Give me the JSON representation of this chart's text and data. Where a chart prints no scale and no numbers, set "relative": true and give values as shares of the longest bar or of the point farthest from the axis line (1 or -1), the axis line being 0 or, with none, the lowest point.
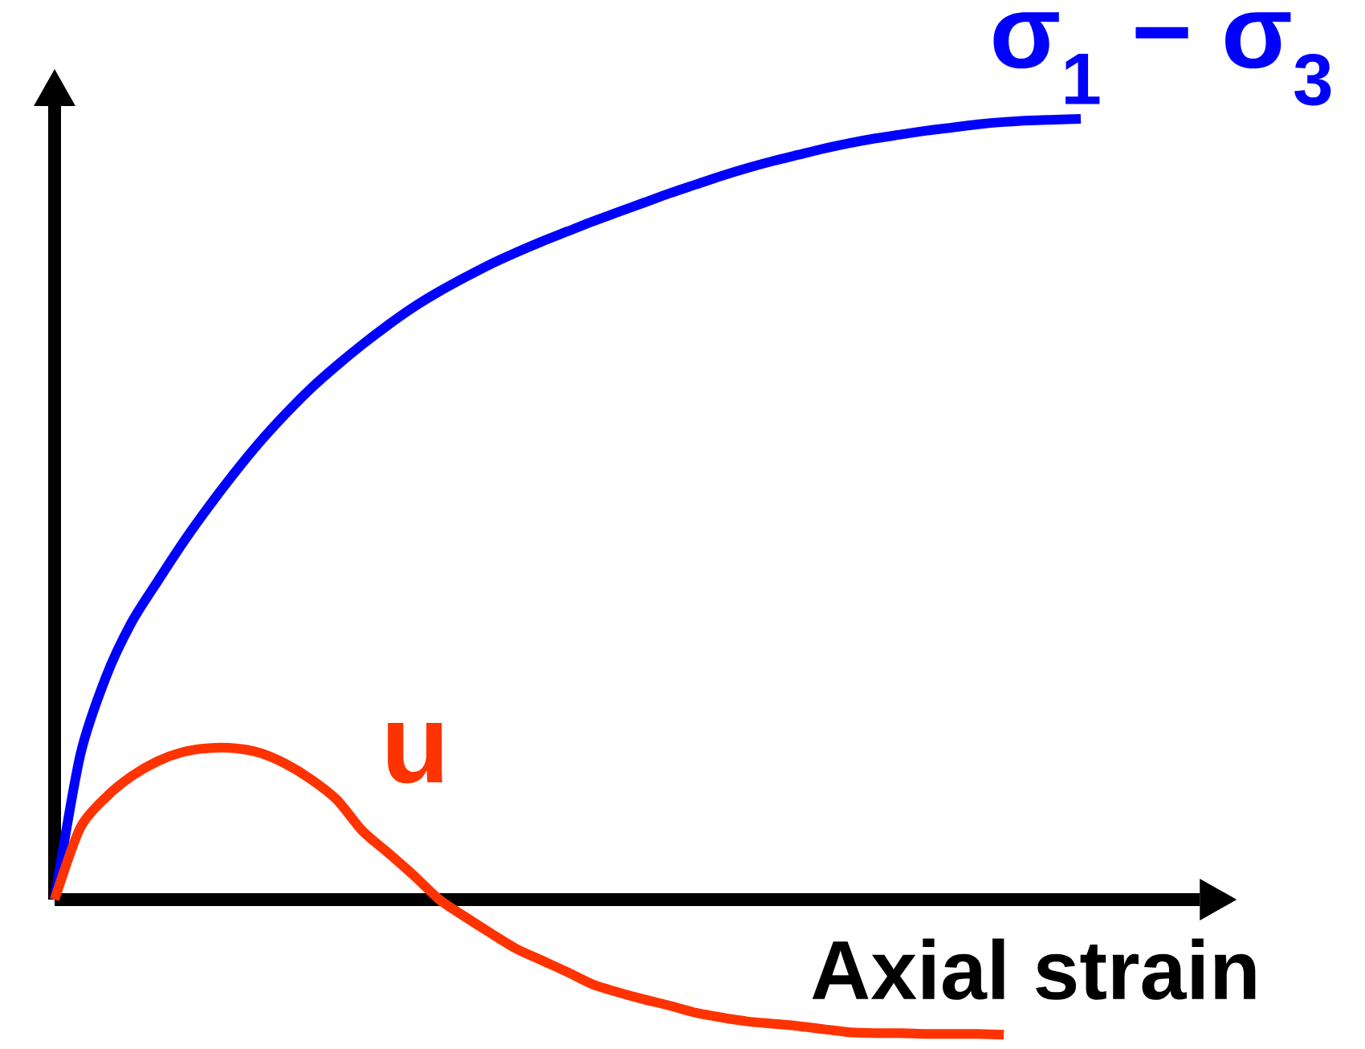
{
  "chart_data": {
    "type": "line",
    "relative": true,
    "xlabel": "Axial strain",
    "categories": [
      null,
      null,
      null,
      null,
      null,
      null,
      null,
      null,
      null,
      null,
      null,
      null,
      null,
      null,
      null,
      null,
      null,
      null,
      null,
      null,
      null,
      null,
      null,
      null,
      null,
      null,
      null,
      null,
      null,
      null,
      null,
      null,
      null,
      null,
      null,
      null,
      null,
      null,
      null,
      null,
      null
    ],
    "series": [
      {
        "name": "σ$_{1}$ − σ$_{3}$",
        "color": "#0000ff",
        "values": [
          0,
          0.185,
          0.285,
          0.355,
          0.407,
          0.457,
          0.503,
          0.546,
          0.586,
          0.622,
          0.655,
          0.684,
          0.711,
          0.736,
          0.759,
          0.779,
          0.797,
          0.814,
          0.829,
          0.843,
          0.856,
          0.869,
          0.881,
          0.893,
          0.905,
          0.916,
          0.927,
          0.937,
          0.946,
          0.954,
          0.962,
          0.969,
          0.975,
          0.98,
          0.985,
          0.989,
          0.993,
          0.996,
          0.998,
          0.999,
          1
        ]
      },
      {
        "name": "u",
        "color": "#ff3300",
        "values": [
          0,
          0.092,
          0.131,
          0.158,
          0.177,
          0.189,
          0.194,
          0.194,
          0.188,
          0.174,
          0.154,
          0.128,
          0.088,
          0.06,
          0.031,
          0,
          -0.022,
          -0.043,
          -0.063,
          -0.078,
          -0.093,
          -0.109,
          -0.119,
          -0.128,
          -0.136,
          -0.145,
          -0.151,
          -0.156,
          -0.159,
          -0.162,
          -0.166,
          -0.17,
          -0.171,
          -0.171,
          -0.172,
          -0.172,
          -0.172,
          -0.173,
          null,
          null,
          null
        ]
      }
    ],
    "marker": "none",
    "line_style": "solid"
  }
}
